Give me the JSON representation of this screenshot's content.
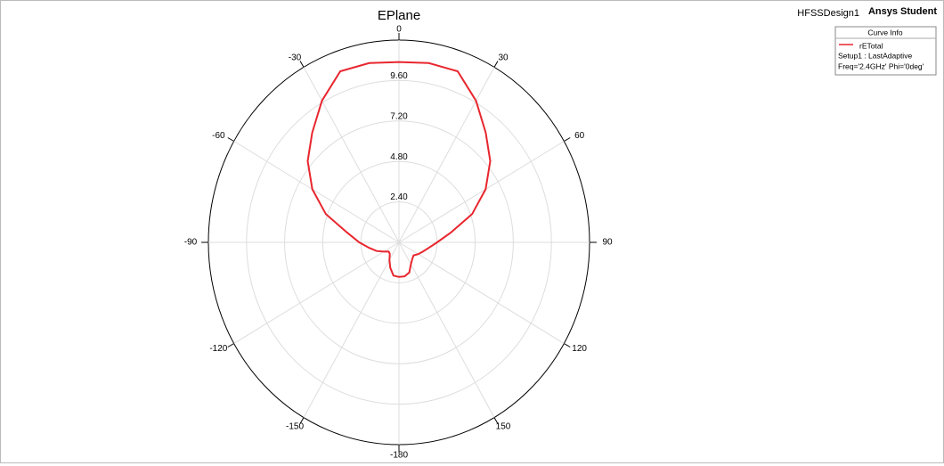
{
  "header": {
    "design": "HFSSDesign1",
    "brand": "Ansys Student"
  },
  "chart_data": {
    "type": "polar",
    "title": "EPlane",
    "rlim": [
      0,
      12
    ],
    "rticks": [
      {
        "value": 2.4,
        "label": "2.40"
      },
      {
        "value": 4.8,
        "label": "4.80"
      },
      {
        "value": 7.2,
        "label": "7.20"
      },
      {
        "value": 9.6,
        "label": "9.60"
      }
    ],
    "thetaticks": [
      0,
      30,
      60,
      90,
      120,
      150,
      -180,
      -150,
      -120,
      -90,
      -60,
      -30
    ],
    "legend_title": "Curve Info",
    "legend_notes": [
      "Setup1 : LastAdaptive",
      "Freq='2.4GHz' Phi='0deg'"
    ],
    "theta": [
      -180,
      -170,
      -160,
      -150,
      -140,
      -130,
      -120,
      -110,
      -100,
      -90,
      -80,
      -70,
      -60,
      -50,
      -40,
      -30,
      -20,
      -10,
      0,
      10,
      20,
      30,
      40,
      50,
      60,
      70,
      80,
      90,
      100,
      110,
      120,
      130,
      140,
      150,
      160,
      170
    ],
    "series": [
      {
        "name": "rETotal",
        "color": "#e8262e",
        "values": [
          2.05,
          2.0,
          1.6,
          1.2,
          0.9,
          0.85,
          1.1,
          1.5,
          1.9,
          2.5,
          3.3,
          4.9,
          6.3,
          7.5,
          8.5,
          9.7,
          10.8,
          10.8,
          10.7,
          10.8,
          10.8,
          9.7,
          8.5,
          7.5,
          6.3,
          4.9,
          3.3,
          2.4,
          1.9,
          1.6,
          1.4,
          1.2,
          1.3,
          1.5,
          1.9,
          2.05
        ]
      }
    ]
  }
}
